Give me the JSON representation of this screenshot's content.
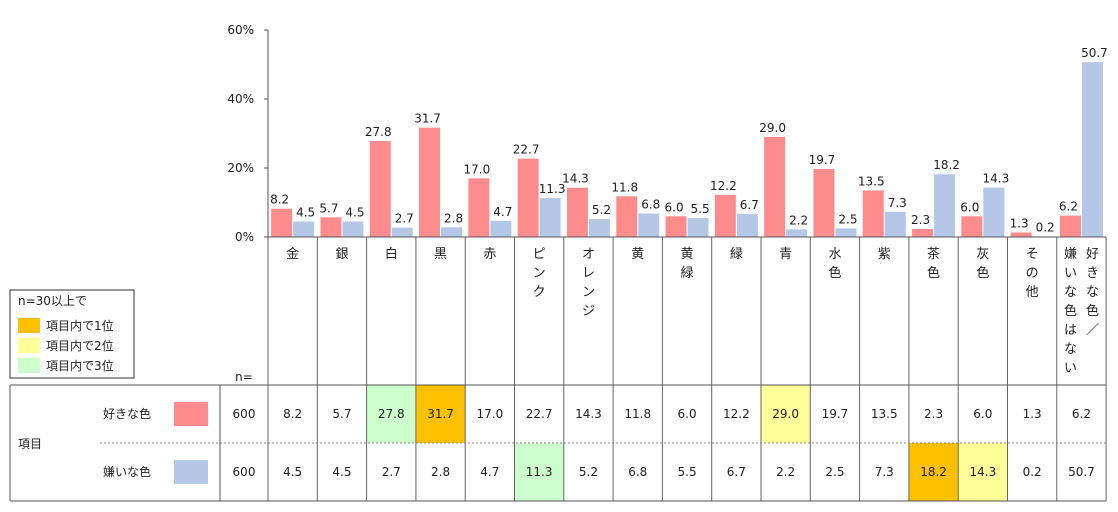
{
  "chart_data": {
    "type": "bar",
    "ylim": [
      0,
      60
    ],
    "y_ticks": [
      "0%",
      "20%",
      "40%",
      "60%"
    ],
    "n_header": "n=",
    "categories": [
      "金",
      "銀",
      "白",
      "黒",
      "赤",
      "ピンク",
      "オレンジ",
      "黄",
      "黄緑",
      "緑",
      "青",
      "水色",
      "紫",
      "茶色",
      "灰色",
      "その他",
      "好きな色／嫌いな色はない"
    ],
    "series": [
      {
        "name": "好きな色",
        "n": "600",
        "color": "#ff8c8c",
        "values": [
          8.2,
          5.7,
          27.8,
          31.7,
          17.0,
          22.7,
          14.3,
          11.8,
          6.0,
          12.2,
          29.0,
          19.7,
          13.5,
          2.3,
          6.0,
          1.3,
          6.2
        ],
        "labels": [
          "8.2",
          "5.7",
          "27.8",
          "31.7",
          "17.0",
          "22.7",
          "14.3",
          "11.8",
          "6.0",
          "12.2",
          "29.0",
          "19.7",
          "13.5",
          "2.3",
          "6.0",
          "1.3",
          "6.2"
        ],
        "ranks": [
          0,
          0,
          3,
          1,
          0,
          0,
          0,
          0,
          0,
          0,
          2,
          0,
          0,
          0,
          0,
          0,
          0
        ]
      },
      {
        "name": "嫌いな色",
        "n": "600",
        "color": "#b4c7e7",
        "values": [
          4.5,
          4.5,
          2.7,
          2.8,
          4.7,
          11.3,
          5.2,
          6.8,
          5.5,
          6.7,
          2.2,
          2.5,
          7.3,
          18.2,
          14.3,
          0.2,
          50.7
        ],
        "labels": [
          "4.5",
          "4.5",
          "2.7",
          "2.8",
          "4.7",
          "11.3",
          "5.2",
          "6.8",
          "5.5",
          "6.7",
          "2.2",
          "2.5",
          "7.3",
          "18.2",
          "14.3",
          "0.2",
          "50.7"
        ],
        "ranks": [
          0,
          0,
          0,
          0,
          0,
          3,
          0,
          0,
          0,
          0,
          0,
          0,
          0,
          1,
          2,
          0,
          0
        ]
      }
    ],
    "row_group_label": "項目",
    "legend": {
      "title": "n=30以上で",
      "items": [
        {
          "label": "項目内で1位",
          "color": "#ffc000"
        },
        {
          "label": "項目内で2位",
          "color": "#ffff99"
        },
        {
          "label": "項目内で3位",
          "color": "#ccffcc"
        }
      ]
    }
  }
}
